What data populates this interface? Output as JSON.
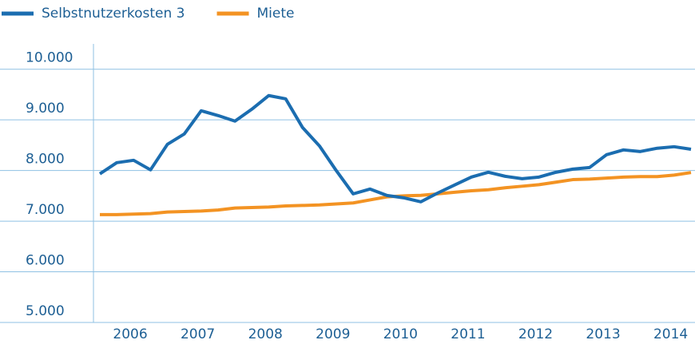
{
  "chart_data": {
    "type": "line",
    "categories": [
      null,
      null,
      "2006",
      null,
      null,
      null,
      "2007",
      null,
      null,
      null,
      "2008",
      null,
      null,
      null,
      "2009",
      null,
      null,
      null,
      "2010",
      null,
      null,
      null,
      "2011",
      null,
      null,
      null,
      "2012",
      null,
      null,
      null,
      "2013",
      null,
      null,
      null,
      "2014",
      null
    ],
    "series": [
      {
        "name": "Selbstnutzerkosten 3",
        "color": "#1b6db0",
        "values": [
          7934,
          8155,
          8202,
          8013,
          8517,
          8722,
          9180,
          9085,
          8975,
          9211,
          9480,
          9416,
          8849,
          8486,
          7997,
          7539,
          7634,
          7508,
          7461,
          7382,
          7555,
          7713,
          7871,
          7965,
          7886,
          7839,
          7871,
          7965,
          8028,
          8060,
          8312,
          8407,
          8375,
          8440,
          8470,
          8420
        ]
      },
      {
        "name": "Miete",
        "color": "#f39323",
        "values": [
          7130,
          7130,
          7140,
          7150,
          7180,
          7190,
          7200,
          7220,
          7260,
          7270,
          7280,
          7300,
          7310,
          7320,
          7340,
          7360,
          7420,
          7480,
          7500,
          7510,
          7540,
          7570,
          7600,
          7620,
          7660,
          7690,
          7720,
          7770,
          7820,
          7830,
          7850,
          7870,
          7880,
          7880,
          7910,
          7960
        ]
      }
    ],
    "ylim": [
      5000,
      10500
    ],
    "yticks": [
      {
        "value": 5000,
        "label": "5.000"
      },
      {
        "value": 6000,
        "label": "6.000"
      },
      {
        "value": 7000,
        "label": "7.000"
      },
      {
        "value": 8000,
        "label": "8.000"
      },
      {
        "value": 9000,
        "label": "9.000"
      },
      {
        "value": 10000,
        "label": "10.000"
      }
    ],
    "grid": true
  }
}
